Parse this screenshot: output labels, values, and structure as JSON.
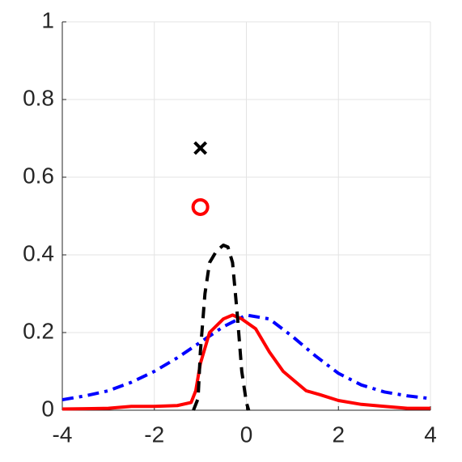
{
  "chart_data": {
    "type": "line",
    "xlim": [
      -4,
      4
    ],
    "xticks": [
      -4,
      -2,
      0,
      2,
      4
    ],
    "ylim": [
      0,
      1
    ],
    "yticks": [
      0,
      0.2,
      0.4,
      0.6,
      0.8,
      1
    ],
    "grid": true,
    "series": [
      {
        "color": "#0000ff",
        "style": "dashdot",
        "x": [
          -4,
          -3.5,
          -3,
          -2.5,
          -2,
          -1.5,
          -1,
          -0.5,
          0,
          0.5,
          1,
          1.5,
          2,
          2.5,
          3,
          3.5,
          4
        ],
        "values": [
          0.027,
          0.037,
          0.05,
          0.072,
          0.1,
          0.135,
          0.175,
          0.215,
          0.245,
          0.235,
          0.19,
          0.14,
          0.095,
          0.065,
          0.047,
          0.037,
          0.03
        ]
      },
      {
        "color": "#ff0000",
        "style": "solid",
        "x": [
          -4,
          -3.5,
          -3,
          -2.5,
          -2,
          -1.5,
          -1.2,
          -1.1,
          -1,
          -0.8,
          -0.5,
          -0.3,
          -0.1,
          0.2,
          0.5,
          0.8,
          1,
          1.3,
          1.6,
          2,
          2.5,
          3,
          3.5,
          4
        ],
        "values": [
          0.003,
          0.004,
          0.005,
          0.01,
          0.01,
          0.012,
          0.02,
          0.05,
          0.12,
          0.2,
          0.235,
          0.245,
          0.235,
          0.21,
          0.15,
          0.1,
          0.08,
          0.05,
          0.04,
          0.025,
          0.015,
          0.01,
          0.005,
          0.005
        ]
      },
      {
        "color": "#000000",
        "style": "dashed",
        "x": [
          -1.15,
          -1.05,
          -1,
          -0.9,
          -0.8,
          -0.65,
          -0.5,
          -0.4,
          -0.3,
          -0.2,
          -0.1,
          0,
          0.05
        ],
        "values": [
          0,
          0.03,
          0.15,
          0.3,
          0.38,
          0.41,
          0.425,
          0.42,
          0.38,
          0.25,
          0.1,
          0.02,
          0
        ]
      },
      {
        "color": "#000000",
        "marker": "x",
        "x": [
          -1
        ],
        "values": [
          0.675
        ]
      },
      {
        "color": "#ff0000",
        "marker": "o",
        "x": [
          -1
        ],
        "values": [
          0.523
        ]
      }
    ]
  }
}
